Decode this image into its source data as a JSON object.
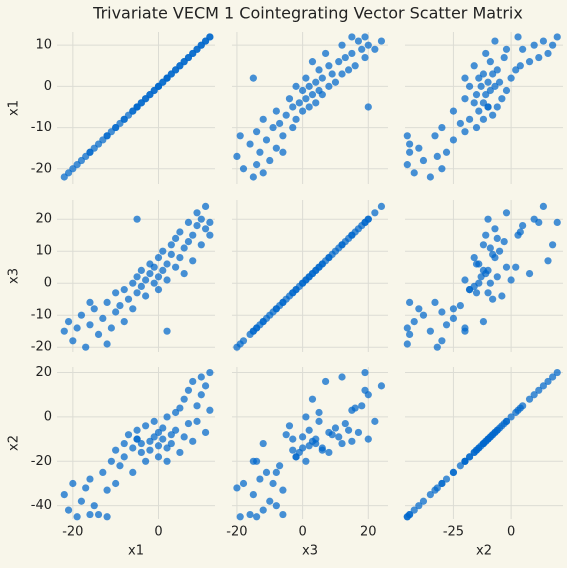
{
  "chart_data": {
    "type": "scatter_matrix",
    "title": "Trivariate VECM 1 Cointegrating Vector Scatter Matrix",
    "color": "#0066cc",
    "grid": true,
    "variables": [
      {
        "name": "x1",
        "lim": [
          -23.7,
          13.2
        ],
        "yticks": [
          -20,
          -10,
          0,
          10
        ],
        "xticks": [
          -20,
          0
        ],
        "values": [
          -22,
          -21,
          -20,
          -19,
          -18,
          -17,
          -16,
          -15,
          -14,
          -13,
          -12,
          -11,
          -10,
          -10,
          -9,
          -8,
          -8,
          -7,
          -6,
          -6,
          -5,
          -5,
          -4,
          -4,
          -3,
          -3,
          -2,
          -2,
          -1,
          -1,
          0,
          0,
          0,
          1,
          1,
          2,
          2,
          3,
          3,
          4,
          4,
          5,
          5,
          6,
          6,
          7,
          7,
          8,
          8,
          9,
          9,
          10,
          10,
          11,
          11,
          12,
          12,
          -12,
          -16,
          2,
          -5
        ]
      },
      {
        "name": "x3",
        "lim": [
          -21.5,
          26
        ],
        "yticks": [
          -20,
          -10,
          0,
          10,
          20
        ],
        "xticks": [
          -20,
          0,
          20
        ],
        "values": [
          -15,
          -12,
          -18,
          -14,
          -10,
          -20,
          -13,
          -8,
          -16,
          -11,
          -6,
          -14,
          -9,
          -3,
          -7,
          -12,
          -2,
          -5,
          0,
          -8,
          -3,
          2,
          -1,
          4,
          1,
          -4,
          3,
          6,
          0,
          5,
          2,
          8,
          -2,
          4,
          10,
          6,
          1,
          9,
          12,
          5,
          14,
          8,
          16,
          11,
          3,
          13,
          19,
          15,
          7,
          18,
          22,
          12,
          20,
          17,
          24,
          19,
          15,
          -19,
          -6,
          -15,
          20
        ]
      },
      {
        "name": "x2",
        "lim": [
          -46,
          22.5
        ],
        "yticks": [
          -40,
          -20,
          0,
          20
        ],
        "xticks": [
          -25,
          0
        ],
        "values": [
          -35,
          -42,
          -30,
          -45,
          -38,
          -32,
          -28,
          -40,
          -44,
          -25,
          -33,
          -20,
          -30,
          -15,
          -22,
          -12,
          -18,
          -8,
          -14,
          -25,
          -10,
          -6,
          -16,
          -12,
          -20,
          -4,
          -11,
          -15,
          -9,
          -2,
          -13,
          -7,
          -18,
          -10,
          -5,
          -14,
          0,
          -8,
          -12,
          2,
          -6,
          -16,
          4,
          -9,
          8,
          -3,
          12,
          -11,
          16,
          5,
          -2,
          18,
          10,
          -7,
          14,
          20,
          3,
          -45,
          -44,
          -20,
          -10
        ]
      }
    ]
  }
}
